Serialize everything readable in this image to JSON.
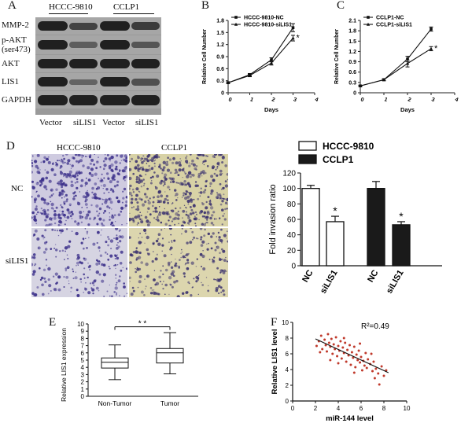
{
  "panels": {
    "A": {
      "label": "A",
      "group_headers": [
        "HCCC-9810",
        "CCLP1"
      ],
      "row_labels": [
        "MMP-2",
        "p-AKT",
        "(ser473)",
        "AKT",
        "LIS1",
        "GAPDH"
      ],
      "lane_labels": [
        "Vector",
        "siLIS1",
        "Vector",
        "siLIS1"
      ]
    },
    "B": {
      "label": "B",
      "chart_data": {
        "type": "line",
        "x": [
          0,
          1,
          2,
          3
        ],
        "series": [
          {
            "name": "HCCC-9810-NC",
            "values": [
              0.25,
              0.45,
              0.82,
              1.62
            ],
            "err": [
              0.02,
              0.03,
              0.05,
              0.1
            ]
          },
          {
            "name": "HCCC-9810-siLIS1",
            "values": [
              0.25,
              0.43,
              0.74,
              1.36
            ],
            "err": [
              0.02,
              0.03,
              0.05,
              0.07
            ]
          }
        ],
        "xlabel": "Days",
        "ylabel": "Relative Cell Number",
        "xticks": [
          "0",
          "1",
          "2",
          "3",
          "4"
        ],
        "yticks": [
          "0",
          "0.3",
          "0.6",
          "0.9",
          "1.2",
          "1.5",
          "1.8"
        ],
        "xlim": [
          0,
          4
        ],
        "ylim": [
          0,
          1.8
        ],
        "annotation": "*",
        "legend": "top-left"
      }
    },
    "C": {
      "label": "C",
      "chart_data": {
        "type": "line",
        "x": [
          0,
          1,
          2,
          3
        ],
        "series": [
          {
            "name": "CCLP1-NC",
            "values": [
              0.2,
              0.38,
              0.98,
              1.85
            ],
            "err": [
              0.02,
              0.03,
              0.08,
              0.06
            ]
          },
          {
            "name": "CCLP1-siLIS1",
            "values": [
              0.2,
              0.38,
              0.85,
              1.28
            ],
            "err": [
              0.02,
              0.03,
              0.1,
              0.06
            ]
          }
        ],
        "xlabel": "Days",
        "ylabel": "Relative Cell Number",
        "xticks": [
          "0",
          "1",
          "2",
          "3",
          "4"
        ],
        "yticks": [
          "0",
          "0.3",
          "0.6",
          "0.9",
          "1.2",
          "1.5",
          "1.8",
          "2.1"
        ],
        "xlim": [
          0,
          4
        ],
        "ylim": [
          0,
          2.1
        ],
        "annotation": "*",
        "legend": "top-left"
      }
    },
    "D": {
      "label": "D",
      "column_headers": [
        "HCCC-9810",
        "CCLP1"
      ],
      "row_labels": [
        "NC",
        "siLIS1"
      ],
      "chart_data": {
        "type": "bar",
        "categories": [
          "NC",
          "siLIS1",
          "NC",
          "siLIS1"
        ],
        "values": [
          100,
          57,
          100,
          53
        ],
        "err": [
          4,
          7,
          9,
          4
        ],
        "groups": [
          "HCCC-9810",
          "HCCC-9810",
          "CCLP1",
          "CCLP1"
        ],
        "legend": [
          {
            "name": "HCCC-9810",
            "color": "#ffffff"
          },
          {
            "name": "CCLP1",
            "color": "#1a1a1a"
          }
        ],
        "ylabel": "Fold invasion ratio",
        "yticks": [
          "0",
          "20",
          "40",
          "60",
          "80",
          "100",
          "120"
        ],
        "ylim": [
          0,
          120
        ],
        "annotation": "*"
      }
    },
    "E": {
      "label": "E",
      "chart_data": {
        "type": "box",
        "categories": [
          "Non-Tumor",
          "Tumor"
        ],
        "boxes": [
          {
            "min": 2.3,
            "q1": 3.9,
            "median": 4.7,
            "q3": 5.3,
            "max": 7.1
          },
          {
            "min": 3.1,
            "q1": 4.6,
            "median": 6.0,
            "q3": 6.6,
            "max": 8.8
          }
        ],
        "ylabel": "Relative LIS1 expression",
        "yticks": [
          "0",
          "1",
          "2",
          "3",
          "4",
          "5",
          "6",
          "7",
          "8",
          "9",
          "10"
        ],
        "ylim": [
          0,
          10
        ],
        "annotation": "* *"
      }
    },
    "F": {
      "label": "F",
      "chart_data": {
        "type": "scatter",
        "xlabel": "miR-144 level",
        "ylabel": "Relative LIS1 level",
        "xticks": [
          "0",
          "2",
          "4",
          "6",
          "8",
          "10"
        ],
        "yticks": [
          "0",
          "2",
          "4",
          "6",
          "8",
          "10"
        ],
        "xlim": [
          0,
          10
        ],
        "ylim": [
          0,
          10
        ],
        "annotation": "R²=0.49",
        "fit": {
          "x": [
            2.0,
            8.4
          ],
          "y": [
            7.9,
            3.6
          ]
        },
        "points": [
          [
            2.1,
            7.0
          ],
          [
            2.3,
            7.6
          ],
          [
            2.5,
            8.3
          ],
          [
            2.6,
            6.6
          ],
          [
            2.8,
            7.8
          ],
          [
            2.9,
            7.1
          ],
          [
            3.0,
            6.3
          ],
          [
            3.1,
            8.5
          ],
          [
            3.2,
            7.4
          ],
          [
            3.3,
            6.9
          ],
          [
            3.4,
            7.9
          ],
          [
            3.5,
            6.0
          ],
          [
            3.6,
            7.2
          ],
          [
            3.7,
            6.6
          ],
          [
            3.8,
            8.1
          ],
          [
            3.9,
            5.7
          ],
          [
            4.0,
            7.0
          ],
          [
            4.1,
            6.4
          ],
          [
            4.2,
            7.6
          ],
          [
            4.3,
            5.4
          ],
          [
            4.4,
            6.8
          ],
          [
            4.5,
            6.1
          ],
          [
            4.6,
            7.4
          ],
          [
            4.7,
            5.0
          ],
          [
            4.8,
            6.5
          ],
          [
            4.9,
            5.8
          ],
          [
            5.0,
            7.1
          ],
          [
            5.1,
            4.6
          ],
          [
            5.2,
            6.2
          ],
          [
            5.3,
            5.5
          ],
          [
            5.4,
            6.9
          ],
          [
            5.5,
            4.3
          ],
          [
            5.6,
            5.9
          ],
          [
            5.7,
            5.2
          ],
          [
            5.8,
            6.4
          ],
          [
            5.9,
            4.9
          ],
          [
            6.0,
            5.6
          ],
          [
            6.1,
            3.9
          ],
          [
            6.2,
            5.1
          ],
          [
            6.3,
            4.5
          ],
          [
            6.4,
            6.1
          ],
          [
            6.5,
            4.2
          ],
          [
            6.6,
            5.3
          ],
          [
            6.8,
            4.7
          ],
          [
            7.0,
            3.8
          ],
          [
            7.1,
            5.0
          ],
          [
            7.3,
            4.1
          ],
          [
            7.5,
            3.5
          ],
          [
            7.6,
            2.1
          ],
          [
            7.8,
            4.4
          ],
          [
            8.0,
            3.2
          ],
          [
            8.2,
            3.9
          ],
          [
            4.5,
            8.0
          ],
          [
            3.3,
            5.2
          ],
          [
            5.9,
            7.3
          ],
          [
            2.4,
            6.2
          ],
          [
            6.9,
            6.0
          ],
          [
            4.0,
            4.8
          ],
          [
            7.2,
            2.9
          ],
          [
            5.4,
            3.6
          ]
        ],
        "point_color": "#c0392b"
      }
    }
  }
}
